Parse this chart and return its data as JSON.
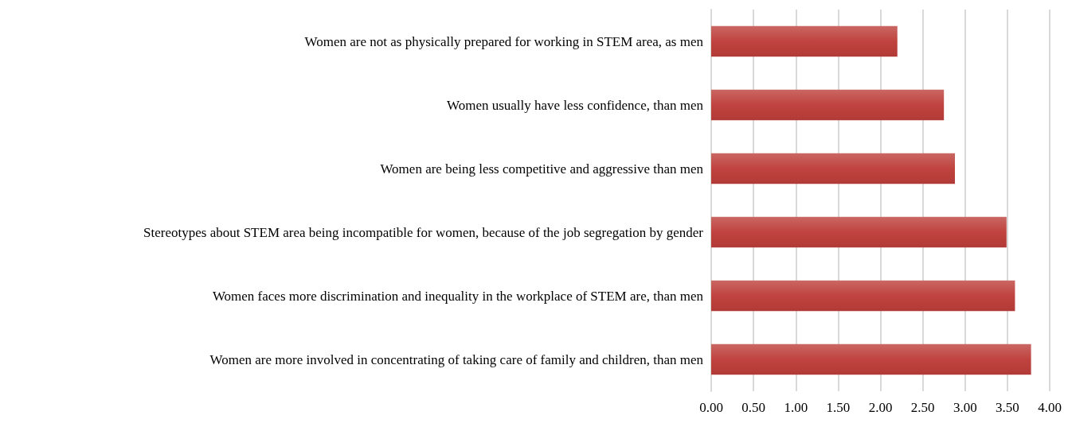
{
  "chart_data": {
    "type": "bar",
    "orientation": "horizontal",
    "categories": [
      "Women are not as physically prepared for working in STEM area, as men",
      "Women usually have less confidence, than men",
      "Women are being less competitive and aggressive than men",
      "Stereotypes about STEM area being incompatible for women, because of the job segregation by gender",
      "Women faces more discrimination and inequality in the workplace of STEM are, than men",
      "Women are more involved in concentrating of taking care of family and children, than men"
    ],
    "values": [
      2.2,
      2.75,
      2.88,
      3.49,
      3.59,
      3.78
    ],
    "color": "#c0433f",
    "xlim": [
      0,
      4
    ],
    "xticks": [
      {
        "value": 0,
        "label": "0.00"
      },
      {
        "value": 0.5,
        "label": "0.50"
      },
      {
        "value": 1,
        "label": "1.00"
      },
      {
        "value": 1.5,
        "label": "1.50"
      },
      {
        "value": 2,
        "label": "2.00"
      },
      {
        "value": 2.5,
        "label": "2.50"
      },
      {
        "value": 3,
        "label": "3.00"
      },
      {
        "value": 3.5,
        "label": "3.50"
      },
      {
        "value": 4,
        "label": "4.00"
      }
    ],
    "grid": "x"
  }
}
